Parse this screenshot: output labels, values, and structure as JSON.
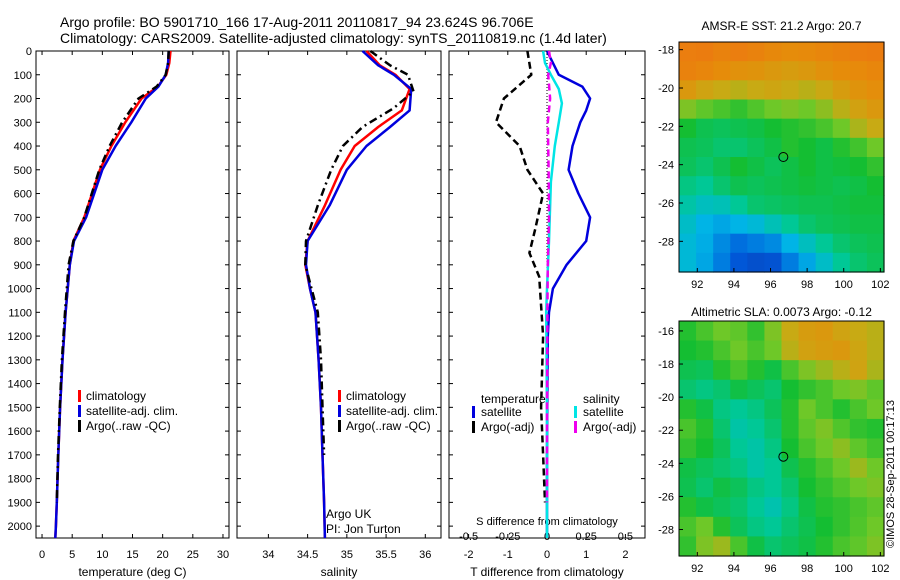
{
  "header": {
    "line1": "Argo profile: BO 5901710_166 17-Aug-2011 20110817_94 23.624S 96.706E",
    "line2": "Climatology: CARS2009. Satellite-adjusted climatology: synTS_20110819.nc (1.4d later)"
  },
  "colors": {
    "climatology": "#ff0000",
    "satellite": "#0000dd",
    "argo": "#000000",
    "sat_sal": "#00e5e5",
    "argo_sal": "#ee00ee"
  },
  "chart_data": [
    {
      "type": "line",
      "id": "temperature",
      "xlabel": "temperature (deg C)",
      "ylabel": "",
      "xlim": [
        -1,
        31
      ],
      "ylim": [
        2050,
        0
      ],
      "xticks": [
        0,
        5,
        10,
        15,
        20,
        25,
        30
      ],
      "yticks": [
        0,
        100,
        200,
        300,
        400,
        500,
        600,
        700,
        800,
        900,
        1000,
        1100,
        1200,
        1300,
        1400,
        1500,
        1600,
        1700,
        1800,
        1900,
        2000
      ],
      "legend": [
        "climatology",
        "satellite-adj. clim.",
        "Argo(..raw -QC)"
      ],
      "series": [
        {
          "name": "climatology",
          "color": "#ff0000",
          "dash": "",
          "x": [
            21.3,
            21.1,
            20.6,
            19.2,
            16.5,
            13.8,
            11.5,
            9.6,
            7.0,
            5.2,
            4.6,
            3.9,
            3.4,
            3.0,
            2.7,
            2.45,
            2.3,
            2.2
          ],
          "y": [
            0,
            50,
            100,
            150,
            200,
            300,
            400,
            500,
            700,
            800,
            900,
            1100,
            1300,
            1500,
            1700,
            1900,
            2000,
            2050
          ]
        },
        {
          "name": "satellite-adj. clim.",
          "color": "#0000dd",
          "dash": "",
          "x": [
            21.0,
            20.9,
            20.5,
            19.3,
            17.2,
            14.8,
            12.2,
            10.0,
            7.3,
            5.3,
            4.6,
            3.9,
            3.4,
            3.0,
            2.7,
            2.45,
            2.3,
            2.2
          ],
          "y": [
            0,
            50,
            100,
            150,
            200,
            300,
            400,
            500,
            700,
            800,
            900,
            1100,
            1300,
            1500,
            1700,
            1900,
            2000,
            2050
          ]
        },
        {
          "name": "Argo(..raw -QC)",
          "color": "#000000",
          "dash": "8,4,2,4",
          "x": [
            21.0,
            20.9,
            20.5,
            19.0,
            16.0,
            13.3,
            11.2,
            9.5,
            7.0,
            5.2,
            4.4,
            3.8,
            3.3,
            2.95,
            2.65,
            2.45
          ],
          "y": [
            0,
            50,
            100,
            150,
            200,
            300,
            400,
            500,
            700,
            800,
            900,
            1100,
            1300,
            1500,
            1700,
            1900
          ]
        }
      ]
    },
    {
      "type": "line",
      "id": "salinity",
      "xlabel": "salinity",
      "xlim": [
        33.6,
        36.2
      ],
      "ylim": [
        2050,
        0
      ],
      "xticks": [
        34,
        34.5,
        35,
        35.5,
        36
      ],
      "xticklabels": [
        "34",
        "34.5",
        "35",
        "35.5",
        "36"
      ],
      "legend": [
        "climatology",
        "satellite-adj. clim.",
        "Argo(..raw -QC)"
      ],
      "annotation": [
        "Argo UK",
        "PI: Jon Turton"
      ],
      "series": [
        {
          "name": "climatology",
          "color": "#ff0000",
          "dash": "",
          "x": [
            35.25,
            35.42,
            35.62,
            35.8,
            35.7,
            35.4,
            35.1,
            34.92,
            34.72,
            34.5,
            34.47,
            34.53,
            34.6,
            34.64,
            34.67,
            34.69,
            34.71,
            34.72
          ],
          "y": [
            0,
            60,
            100,
            160,
            250,
            320,
            400,
            500,
            650,
            800,
            900,
            1000,
            1100,
            1300,
            1500,
            1700,
            1900,
            2050
          ]
        },
        {
          "name": "satellite-adj. clim.",
          "color": "#0000dd",
          "dash": "",
          "x": [
            35.2,
            35.4,
            35.6,
            35.82,
            35.8,
            35.55,
            35.25,
            35.0,
            34.78,
            34.5,
            34.48,
            34.53,
            34.6,
            34.64,
            34.67,
            34.69,
            34.71,
            34.72
          ],
          "y": [
            0,
            60,
            100,
            160,
            250,
            320,
            400,
            500,
            650,
            800,
            900,
            1000,
            1100,
            1300,
            1500,
            1700,
            1900,
            2050
          ]
        },
        {
          "name": "Argo(..raw -QC)",
          "color": "#000000",
          "dash": "8,4,2,4",
          "x": [
            35.3,
            35.55,
            35.78,
            35.85,
            35.6,
            35.2,
            34.95,
            34.8,
            34.63,
            34.48,
            34.47,
            34.55,
            34.63,
            34.67,
            34.69,
            34.71
          ],
          "y": [
            0,
            60,
            100,
            170,
            240,
            320,
            400,
            500,
            650,
            800,
            900,
            1000,
            1100,
            1300,
            1500,
            1700
          ]
        }
      ]
    },
    {
      "type": "line",
      "id": "differences",
      "xlabel": "T difference from climatology",
      "xlabel_top": "S difference from climatology",
      "xlim": [
        -2.5,
        2.5
      ],
      "ylim": [
        2050,
        0
      ],
      "xticks": [
        -2,
        -1,
        0,
        1,
        2
      ],
      "xticklabels": [
        "-2",
        "-1",
        "0",
        "1",
        "2"
      ],
      "sticks": [
        -0.5,
        -0.25,
        0,
        0.25,
        0.5
      ],
      "sticklabels": [
        "-0.5",
        "-0.25",
        "0",
        "0.25",
        "0.5"
      ],
      "legend_titles": [
        "temperature",
        "salinity"
      ],
      "legend": [
        "satellite",
        "Argo(-adj)",
        "satellite",
        "Argo(-adj)"
      ],
      "series": [
        {
          "name": "satellite",
          "group": "temperature",
          "color": "#0000dd",
          "dash": "",
          "x": [
            0,
            0.3,
            0.9,
            1.1,
            1.0,
            0.85,
            0.65,
            0.55,
            0.8,
            1.1,
            1.0,
            0.5,
            0.15,
            0.05,
            0.02,
            0.01,
            0.0,
            0.0
          ],
          "y": [
            0,
            100,
            150,
            200,
            250,
            300,
            400,
            500,
            600,
            700,
            800,
            900,
            1000,
            1100,
            1200,
            1400,
            1700,
            2050
          ]
        },
        {
          "name": "Argo(-adj)",
          "group": "temperature",
          "color": "#000000",
          "dash": "7,4",
          "x": [
            -0.5,
            -0.4,
            -1.1,
            -1.3,
            -1.0,
            -0.7,
            -0.5,
            -0.1,
            -0.3,
            -0.45,
            -0.2,
            -0.1,
            -0.15,
            -0.1,
            -0.05
          ],
          "y": [
            0,
            100,
            200,
            300,
            350,
            400,
            500,
            600,
            750,
            850,
            950,
            1200,
            1500,
            1700,
            1900
          ]
        },
        {
          "name": "satellite",
          "group": "salinity",
          "color": "#00e5e5",
          "dash": "",
          "x": [
            -0.1,
            -0.05,
            0.1,
            0.3,
            0.38,
            0.3,
            0.2,
            0.1,
            0.05,
            0.0,
            -0.02,
            -0.01,
            0.0,
            0.0
          ],
          "y": [
            0,
            50,
            100,
            160,
            220,
            300,
            400,
            550,
            800,
            1000,
            1100,
            1300,
            1600,
            2050
          ]
        },
        {
          "name": "Argo(-adj)",
          "group": "salinity",
          "color": "#ee00ee",
          "dash": "7,4",
          "x": [
            0.05,
            0.1,
            0.03,
            0.08,
            0.02,
            0.04,
            0.05,
            0.02,
            0.01,
            0.0,
            0.0
          ],
          "y": [
            0,
            50,
            100,
            200,
            300,
            500,
            700,
            900,
            1100,
            1500,
            1900
          ]
        }
      ]
    },
    {
      "type": "heatmap",
      "id": "sst-map",
      "title": "AMSR-E SST: 21.2 Argo: 20.7",
      "xlim": [
        91,
        102.2
      ],
      "ylim": [
        -29.6,
        -17.6
      ],
      "xticks": [
        92,
        94,
        96,
        98,
        100,
        102
      ],
      "yticks": [
        -18,
        -20,
        -22,
        -24,
        -26,
        -28
      ],
      "marker": {
        "lon": 96.7,
        "lat": -23.6
      },
      "field": [
        [
          0.92,
          0.93,
          0.9,
          0.92,
          0.9,
          0.87,
          0.85,
          0.86,
          0.88,
          0.9,
          0.92,
          0.93
        ],
        [
          0.9,
          0.88,
          0.85,
          0.83,
          0.82,
          0.8,
          0.78,
          0.8,
          0.83,
          0.85,
          0.86,
          0.88
        ],
        [
          0.8,
          0.75,
          0.72,
          0.7,
          0.72,
          0.74,
          0.72,
          0.7,
          0.73,
          0.78,
          0.82,
          0.84
        ],
        [
          0.62,
          0.58,
          0.55,
          0.52,
          0.56,
          0.6,
          0.62,
          0.6,
          0.64,
          0.7,
          0.76,
          0.8
        ],
        [
          0.48,
          0.45,
          0.44,
          0.45,
          0.46,
          0.48,
          0.5,
          0.52,
          0.55,
          0.6,
          0.68,
          0.72
        ],
        [
          0.45,
          0.44,
          0.42,
          0.42,
          0.44,
          0.46,
          0.5,
          0.48,
          0.46,
          0.5,
          0.54,
          0.6
        ],
        [
          0.44,
          0.42,
          0.45,
          0.48,
          0.46,
          0.44,
          0.46,
          0.48,
          0.46,
          0.47,
          0.48,
          0.52
        ],
        [
          0.4,
          0.38,
          0.42,
          0.45,
          0.44,
          0.45,
          0.46,
          0.47,
          0.46,
          0.45,
          0.46,
          0.48
        ],
        [
          0.36,
          0.33,
          0.34,
          0.38,
          0.42,
          0.43,
          0.44,
          0.45,
          0.45,
          0.46,
          0.47,
          0.47
        ],
        [
          0.32,
          0.28,
          0.26,
          0.28,
          0.3,
          0.34,
          0.38,
          0.42,
          0.44,
          0.45,
          0.46,
          0.46
        ],
        [
          0.3,
          0.27,
          0.22,
          0.18,
          0.2,
          0.22,
          0.28,
          0.33,
          0.38,
          0.42,
          0.44,
          0.45
        ],
        [
          0.3,
          0.26,
          0.2,
          0.14,
          0.12,
          0.13,
          0.2,
          0.26,
          0.32,
          0.38,
          0.42,
          0.44
        ]
      ]
    },
    {
      "type": "heatmap",
      "id": "sla-map",
      "title": "Altimetric SLA: 0.0073 Argo: -0.12",
      "xlim": [
        91,
        102.2
      ],
      "ylim": [
        -29.6,
        -15.4
      ],
      "xticks": [
        92,
        94,
        96,
        98,
        100,
        102
      ],
      "yticks": [
        -16,
        -18,
        -20,
        -22,
        -24,
        -26,
        -28
      ],
      "marker": {
        "lon": 96.7,
        "lat": -23.6
      },
      "field": [
        [
          0.5,
          0.55,
          0.6,
          0.58,
          0.52,
          0.62,
          0.72,
          0.78,
          0.8,
          0.75,
          0.72,
          0.7
        ],
        [
          0.48,
          0.5,
          0.55,
          0.6,
          0.55,
          0.6,
          0.7,
          0.76,
          0.78,
          0.8,
          0.74,
          0.7
        ],
        [
          0.45,
          0.44,
          0.5,
          0.55,
          0.5,
          0.46,
          0.55,
          0.62,
          0.66,
          0.7,
          0.75,
          0.68
        ],
        [
          0.42,
          0.4,
          0.42,
          0.46,
          0.44,
          0.42,
          0.48,
          0.52,
          0.55,
          0.6,
          0.62,
          0.58
        ],
        [
          0.5,
          0.46,
          0.4,
          0.38,
          0.4,
          0.44,
          0.5,
          0.6,
          0.55,
          0.5,
          0.55,
          0.6
        ],
        [
          0.55,
          0.5,
          0.42,
          0.36,
          0.38,
          0.42,
          0.5,
          0.58,
          0.62,
          0.56,
          0.52,
          0.5
        ],
        [
          0.52,
          0.48,
          0.44,
          0.38,
          0.36,
          0.4,
          0.48,
          0.55,
          0.6,
          0.64,
          0.58,
          0.54
        ],
        [
          0.46,
          0.44,
          0.42,
          0.4,
          0.36,
          0.38,
          0.45,
          0.5,
          0.55,
          0.6,
          0.66,
          0.6
        ],
        [
          0.45,
          0.42,
          0.46,
          0.44,
          0.4,
          0.38,
          0.42,
          0.48,
          0.52,
          0.56,
          0.6,
          0.62
        ],
        [
          0.5,
          0.46,
          0.44,
          0.42,
          0.38,
          0.35,
          0.4,
          0.46,
          0.5,
          0.52,
          0.55,
          0.58
        ],
        [
          0.55,
          0.6,
          0.5,
          0.44,
          0.4,
          0.38,
          0.42,
          0.45,
          0.48,
          0.52,
          0.56,
          0.6
        ],
        [
          0.52,
          0.62,
          0.66,
          0.55,
          0.46,
          0.42,
          0.44,
          0.46,
          0.5,
          0.55,
          0.58,
          0.62
        ]
      ]
    }
  ],
  "credit": "©IMOS 28-Sep-2011 00:17:13"
}
